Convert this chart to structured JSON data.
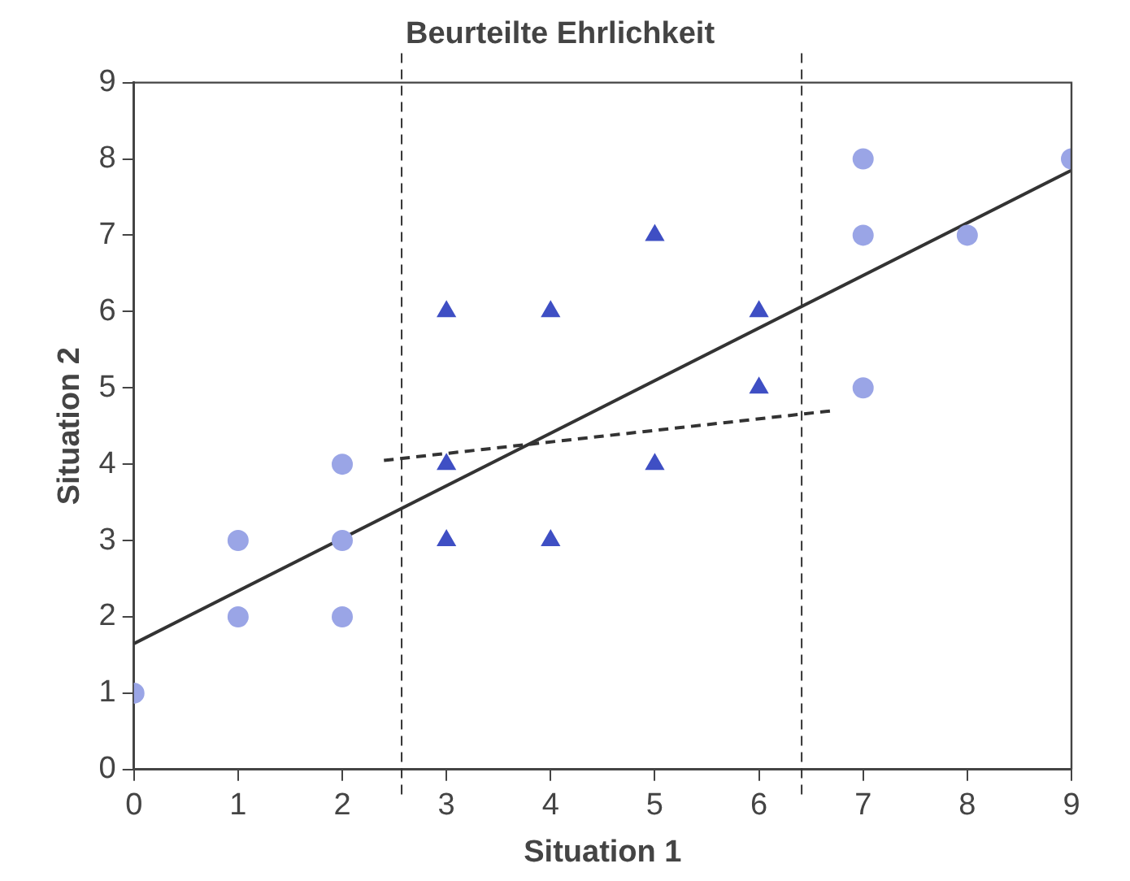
{
  "chart_data": {
    "type": "scatter",
    "title": "Beurteilte Ehrlichkeit",
    "xlabel": "Situation 1",
    "ylabel": "Situation 2",
    "xlim": [
      0,
      9
    ],
    "ylim": [
      0,
      9
    ],
    "xticks": [
      0,
      1,
      2,
      3,
      4,
      5,
      6,
      7,
      8,
      9
    ],
    "yticks": [
      0,
      1,
      2,
      3,
      4,
      5,
      6,
      7,
      8,
      9
    ],
    "grid": false,
    "legend": false,
    "series": [
      {
        "color": "#9aa5e6",
        "marker": "circle",
        "x": [
          0,
          1,
          1,
          2,
          2,
          2,
          7,
          7,
          7,
          8,
          9
        ],
        "values": [
          1,
          3,
          2,
          4,
          3,
          2,
          8,
          7,
          5,
          7,
          8
        ]
      },
      {
        "color": "#3f4fc4",
        "marker": "triangle",
        "x": [
          3,
          4,
          5,
          6,
          6,
          3,
          5,
          3,
          4
        ],
        "values": [
          6,
          6,
          7,
          6,
          5,
          4,
          4,
          3,
          3
        ]
      },
      {
        "type": "line",
        "color": "#333333",
        "line_style": "solid",
        "x": [
          0,
          9
        ],
        "values": [
          1.65,
          7.85
        ]
      },
      {
        "type": "line",
        "color": "#333333",
        "line_style": "dashed",
        "x": [
          2.4,
          6.7
        ],
        "values": [
          4.05,
          4.7
        ]
      }
    ],
    "ref_lines": [
      {
        "axis": "x",
        "value": 2.57,
        "line_style": "dashed",
        "color": "#333333"
      },
      {
        "axis": "x",
        "value": 6.41,
        "line_style": "dashed",
        "color": "#333333"
      }
    ]
  }
}
